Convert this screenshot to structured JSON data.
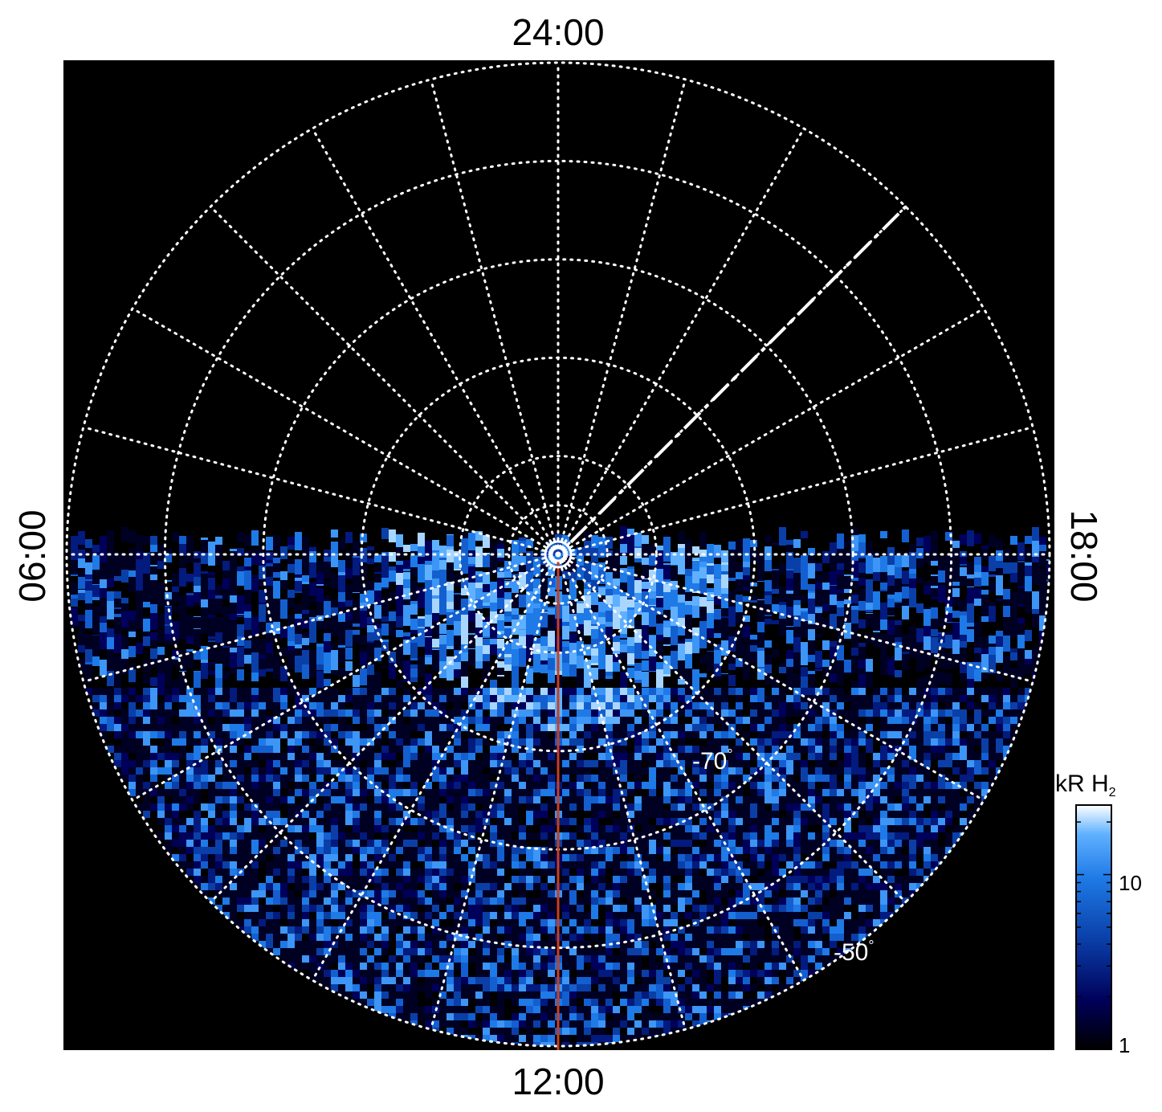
{
  "chart_data": {
    "type": "heatmap",
    "projection": "polar",
    "description_units": "local time around the rim, latitude rings toward the pole",
    "local_time_labels": {
      "top": "24:00",
      "left": "06:00",
      "right": "18:00",
      "bottom": "12:00"
    },
    "latitude_ring_labels": [
      {
        "text": "-70",
        "degree": "°",
        "latitude": -70
      },
      {
        "text": "-50",
        "degree": "°",
        "latitude": -50
      }
    ],
    "latitude_rings_deg": [
      -85,
      -80,
      -70,
      -60,
      -50,
      -40
    ],
    "pole_latitude": -90,
    "local_time_meridian_step_hours": 1,
    "colorbar": {
      "title": "kR H",
      "title_subscript": "2",
      "scale": "log",
      "range": [
        1,
        25
      ],
      "tick_labels": [
        {
          "text": "10",
          "value": 10
        },
        {
          "text": "1",
          "value": 1
        }
      ],
      "colors": [
        "#000000",
        "#00005a",
        "#0a3fa8",
        "#1e7ae6",
        "#5fb0ff",
        "#ffffff"
      ]
    },
    "data_coverage": "southern half of the map (06:00 through 12:00 to 18:00) is filled with emission; the nightside half is empty",
    "auroral_oval_peak_kR": 20,
    "reference_meridian": {
      "local_time": "12:00",
      "color": "#c8401e"
    },
    "dashed_line_local_time": "~21:00",
    "grid": true,
    "grid_color": "#ffffff"
  }
}
